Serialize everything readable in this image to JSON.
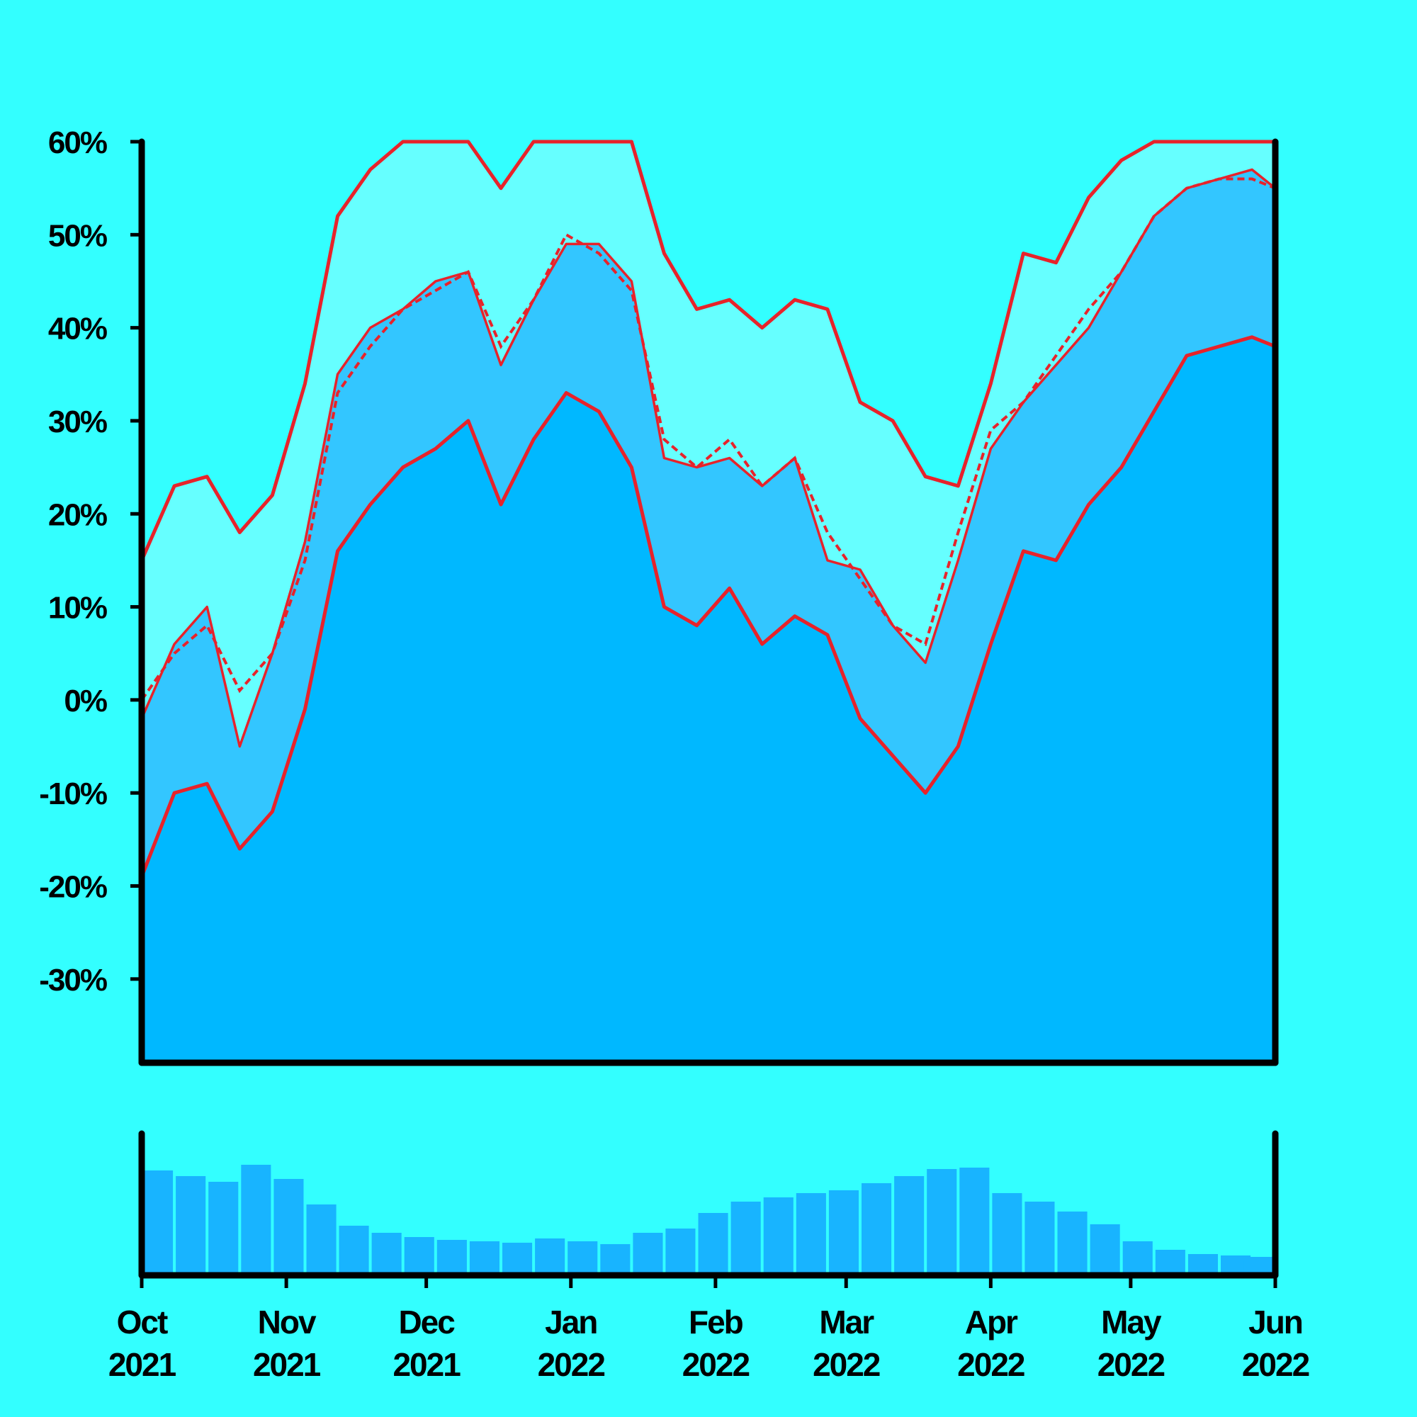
{
  "colors": {
    "background": "#33FFFF",
    "band_outer": "#66FFFF",
    "band_inner": "#33C6FF",
    "base_area": "#00B8FF",
    "line": "#E8222A",
    "volume": "#18B4FF",
    "axis": "#000000"
  },
  "chart_data": [
    {
      "type": "area",
      "title": "",
      "xlabel": "",
      "ylabel": "",
      "ylim": [
        -0.39,
        0.6
      ],
      "yticks": [
        0.6,
        0.5,
        0.4,
        0.3,
        0.2,
        0.1,
        0.0,
        -0.1,
        -0.2,
        -0.3
      ],
      "ytick_labels": [
        "60%",
        "50%",
        "40%",
        "30%",
        "20%",
        "10%",
        "0%",
        "-10%",
        "-20%",
        "-30%"
      ],
      "xlim": [
        "2021-10-01",
        "2022-06-01"
      ],
      "xticks": [
        {
          "date": "2021-10-01",
          "month": "Oct",
          "year": "2021"
        },
        {
          "date": "2021-11-01",
          "month": "Nov",
          "year": "2021"
        },
        {
          "date": "2021-12-01",
          "month": "Dec",
          "year": "2021"
        },
        {
          "date": "2022-01-01",
          "month": "Jan",
          "year": "2022"
        },
        {
          "date": "2022-02-01",
          "month": "Feb",
          "year": "2022"
        },
        {
          "date": "2022-03-01",
          "month": "Mar",
          "year": "2022"
        },
        {
          "date": "2022-04-01",
          "month": "Apr",
          "year": "2022"
        },
        {
          "date": "2022-05-01",
          "month": "May",
          "year": "2022"
        },
        {
          "date": "2022-06-01",
          "month": "Jun",
          "year": "2022"
        }
      ],
      "grid": false,
      "x": [
        "2021-10-01",
        "2021-10-08",
        "2021-10-15",
        "2021-10-22",
        "2021-10-29",
        "2021-11-05",
        "2021-11-12",
        "2021-11-19",
        "2021-11-26",
        "2021-12-03",
        "2021-12-10",
        "2021-12-17",
        "2021-12-24",
        "2021-12-31",
        "2022-01-07",
        "2022-01-14",
        "2022-01-21",
        "2022-01-28",
        "2022-02-04",
        "2022-02-11",
        "2022-02-18",
        "2022-02-25",
        "2022-03-04",
        "2022-03-11",
        "2022-03-18",
        "2022-03-25",
        "2022-04-01",
        "2022-04-08",
        "2022-04-15",
        "2022-04-22",
        "2022-04-29",
        "2022-05-06",
        "2022-05-13",
        "2022-05-20",
        "2022-05-27",
        "2022-06-01"
      ],
      "series": [
        {
          "key": "upper",
          "values": [
            0.15,
            0.23,
            0.24,
            0.18,
            0.22,
            0.34,
            0.52,
            0.57,
            0.6,
            0.6,
            0.6,
            0.55,
            0.6,
            0.6,
            0.6,
            0.6,
            0.48,
            0.42,
            0.43,
            0.4,
            0.43,
            0.42,
            0.32,
            0.3,
            0.24,
            0.23,
            0.34,
            0.48,
            0.47,
            0.54,
            0.58,
            0.6,
            0.6,
            0.6,
            0.6,
            0.6
          ]
        },
        {
          "key": "price",
          "values": [
            -0.02,
            0.06,
            0.1,
            -0.05,
            0.05,
            0.17,
            0.35,
            0.4,
            0.42,
            0.45,
            0.46,
            0.36,
            0.43,
            0.49,
            0.49,
            0.45,
            0.26,
            0.25,
            0.26,
            0.23,
            0.26,
            0.15,
            0.14,
            0.08,
            0.04,
            0.15,
            0.27,
            0.32,
            0.36,
            0.4,
            0.46,
            0.52,
            0.55,
            0.56,
            0.57,
            0.55
          ]
        },
        {
          "key": "average",
          "values": [
            0.0,
            0.05,
            0.08,
            0.01,
            0.05,
            0.15,
            0.33,
            0.38,
            0.42,
            0.44,
            0.46,
            0.38,
            0.43,
            0.5,
            0.48,
            0.44,
            0.28,
            0.25,
            0.28,
            0.23,
            0.26,
            0.18,
            0.13,
            0.08,
            0.06,
            0.18,
            0.29,
            0.32,
            0.37,
            0.42,
            0.46,
            0.52,
            0.55,
            0.56,
            0.56,
            0.55
          ]
        },
        {
          "key": "lower",
          "values": [
            -0.19,
            -0.1,
            -0.09,
            -0.16,
            -0.12,
            -0.01,
            0.16,
            0.21,
            0.25,
            0.27,
            0.3,
            0.21,
            0.28,
            0.33,
            0.31,
            0.25,
            0.1,
            0.08,
            0.12,
            0.06,
            0.09,
            0.07,
            -0.02,
            -0.06,
            -0.1,
            -0.05,
            0.06,
            0.16,
            0.15,
            0.21,
            0.25,
            0.31,
            0.37,
            0.38,
            0.39,
            0.38
          ]
        }
      ]
    },
    {
      "type": "bar",
      "title": "",
      "xlabel": "",
      "ylabel": "",
      "ylim": [
        0,
        1
      ],
      "x": [
        "2021-10-01",
        "2021-10-08",
        "2021-10-15",
        "2021-10-22",
        "2021-10-29",
        "2021-11-05",
        "2021-11-12",
        "2021-11-19",
        "2021-11-26",
        "2021-12-03",
        "2021-12-10",
        "2021-12-17",
        "2021-12-24",
        "2021-12-31",
        "2022-01-07",
        "2022-01-14",
        "2022-01-21",
        "2022-01-28",
        "2022-02-04",
        "2022-02-11",
        "2022-02-18",
        "2022-02-25",
        "2022-03-04",
        "2022-03-11",
        "2022-03-18",
        "2022-03-25",
        "2022-04-01",
        "2022-04-08",
        "2022-04-15",
        "2022-04-22",
        "2022-04-29",
        "2022-05-06",
        "2022-05-13",
        "2022-05-20",
        "2022-05-27",
        "2022-06-01"
      ],
      "values": [
        0.74,
        0.7,
        0.66,
        0.78,
        0.68,
        0.5,
        0.35,
        0.3,
        0.27,
        0.25,
        0.24,
        0.23,
        0.26,
        0.24,
        0.22,
        0.3,
        0.33,
        0.44,
        0.52,
        0.55,
        0.58,
        0.6,
        0.65,
        0.7,
        0.75,
        0.76,
        0.58,
        0.52,
        0.45,
        0.36,
        0.24,
        0.18,
        0.15,
        0.14,
        0.13,
        0.1
      ]
    }
  ]
}
